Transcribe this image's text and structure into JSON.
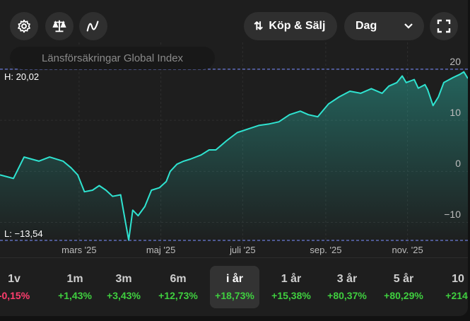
{
  "toolbar": {
    "trade_label": "Köp & Sälj",
    "interval": "Dag"
  },
  "title": "Länsförsäkringar Global Index",
  "high_label": "H: 20,02",
  "low_label": "L: −13,54",
  "colors": {
    "line": "#2fe3d0",
    "positive": "#3fcf3f",
    "negative": "#ff3d6e",
    "ref": "#6b7bd8"
  },
  "chart_data": {
    "type": "area",
    "title": "Länsförsäkringar Global Index",
    "xlabel": "",
    "ylabel": "%",
    "x_unit": "day of year 2025",
    "xlim": [
      1,
      350
    ],
    "ylim": [
      -14.23,
      25.27
    ],
    "yticks": [
      20,
      10,
      0,
      -10
    ],
    "ytick_labels": [
      "20",
      "10",
      "0",
      "−10"
    ],
    "xticks": [
      60,
      121,
      182,
      244,
      305
    ],
    "xtick_labels": [
      "mars '25",
      "maj '25",
      "juli '25",
      "sep. '25",
      "nov. '25"
    ],
    "high": 20.02,
    "low": -13.54,
    "x": [
      1,
      11,
      19,
      30,
      38,
      48,
      54,
      59,
      64,
      70,
      75,
      80,
      85,
      91,
      93,
      97,
      100,
      104,
      109,
      114,
      120,
      125,
      128,
      133,
      138,
      143,
      151,
      157,
      162,
      170,
      178,
      186,
      194,
      202,
      209,
      217,
      225,
      231,
      238,
      246,
      254,
      262,
      270,
      278,
      286,
      291,
      297,
      301,
      304,
      310,
      313,
      318,
      320,
      324,
      328,
      332,
      339,
      344,
      347,
      350
    ],
    "y": [
      -0.7,
      -1.4,
      2.8,
      2,
      2.8,
      2,
      0.7,
      -0.7,
      -4,
      -3.7,
      -2.8,
      -3.7,
      -4.9,
      -4.6,
      -7.6,
      -13.5,
      -7.6,
      -8.7,
      -6.9,
      -3.7,
      -3.2,
      -2,
      0,
      1.4,
      2,
      2.4,
      3.2,
      4.2,
      4.2,
      6,
      7.6,
      8.3,
      9,
      9.3,
      9.7,
      11.1,
      11.8,
      11.1,
      10.7,
      13.2,
      14.6,
      15.7,
      15.3,
      16.2,
      15.3,
      16.7,
      17.4,
      18.7,
      17.4,
      18,
      16.3,
      17,
      16,
      12.9,
      14.6,
      17.4,
      18.4,
      19,
      19.5,
      18.2
    ]
  },
  "periods": [
    {
      "label": "1v",
      "value": "-0,15%",
      "sign": "neg"
    },
    {
      "label": "1m",
      "value": "+1,43%",
      "sign": "pos"
    },
    {
      "label": "3m",
      "value": "+3,43%",
      "sign": "pos"
    },
    {
      "label": "6m",
      "value": "+12,73%",
      "sign": "pos"
    },
    {
      "label": "i år",
      "value": "+18,73%",
      "sign": "pos",
      "selected": true
    },
    {
      "label": "1 år",
      "value": "+15,38%",
      "sign": "pos"
    },
    {
      "label": "3 år",
      "value": "+80,37%",
      "sign": "pos"
    },
    {
      "label": "5 år",
      "value": "+80,29%",
      "sign": "pos"
    },
    {
      "label": "10",
      "value": "+214,",
      "sign": "pos"
    }
  ]
}
